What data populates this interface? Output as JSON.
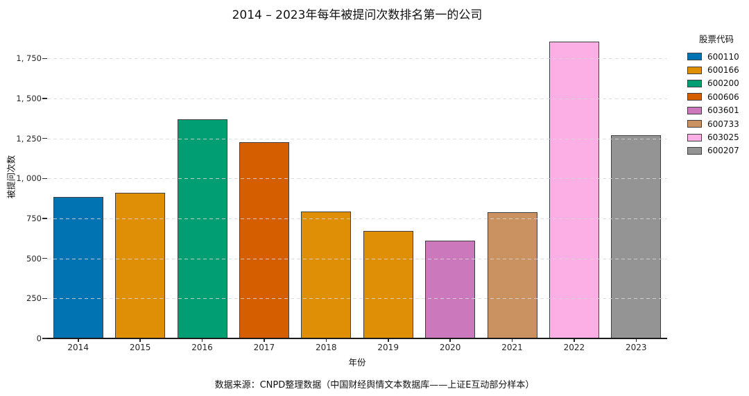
{
  "figure": {
    "title": "2014 – 2023年每年被提问次数排名第一的公司",
    "source_note": "数据来源：CNPD整理数据（中国财经舆情文本数据库——上证E互动部分样本）"
  },
  "chart_data": {
    "type": "bar",
    "title": "2014 – 2023年每年被提问次数排名第一的公司",
    "xlabel": "年份",
    "ylabel": "被提问次数",
    "categories": [
      "2014",
      "2015",
      "2016",
      "2017",
      "2018",
      "2019",
      "2020",
      "2021",
      "2022",
      "2023"
    ],
    "values": [
      885,
      910,
      1370,
      1225,
      795,
      670,
      610,
      790,
      1855,
      1270
    ],
    "bar_stock_codes": [
      "600110",
      "600166",
      "600200",
      "600606",
      "600166",
      "600166",
      "603601",
      "600733",
      "603025",
      "600207"
    ],
    "bar_colors": [
      "#0173b2",
      "#de8f05",
      "#029e73",
      "#d55e00",
      "#de8f05",
      "#de8f05",
      "#cc78bc",
      "#ca9161",
      "#fbafe4",
      "#949494"
    ],
    "bar_edge_color": "#3f3f3f",
    "ylim": [
      0,
      1920
    ],
    "yticks": [
      {
        "value": 0,
        "label": "0"
      },
      {
        "value": 250,
        "label": "250"
      },
      {
        "value": 500,
        "label": "500"
      },
      {
        "value": 750,
        "label": "750"
      },
      {
        "value": 1000,
        "label": "1, 000"
      },
      {
        "value": 1250,
        "label": "1, 250"
      },
      {
        "value": 1500,
        "label": "1, 500"
      },
      {
        "value": 1750,
        "label": "1, 750"
      }
    ],
    "grid": "horizontal-dashed",
    "legend": {
      "title": "股票代码",
      "position": "upper-right-outside",
      "entries": [
        {
          "label": "600110",
          "color": "#0173b2"
        },
        {
          "label": "600166",
          "color": "#de8f05"
        },
        {
          "label": "600200",
          "color": "#029e73"
        },
        {
          "label": "600606",
          "color": "#d55e00"
        },
        {
          "label": "603601",
          "color": "#cc78bc"
        },
        {
          "label": "600733",
          "color": "#ca9161"
        },
        {
          "label": "603025",
          "color": "#fbafe4"
        },
        {
          "label": "600207",
          "color": "#949494"
        }
      ]
    },
    "source_note": "数据来源：CNPD整理数据（中国财经舆情文本数据库——上证E互动部分样本）"
  }
}
